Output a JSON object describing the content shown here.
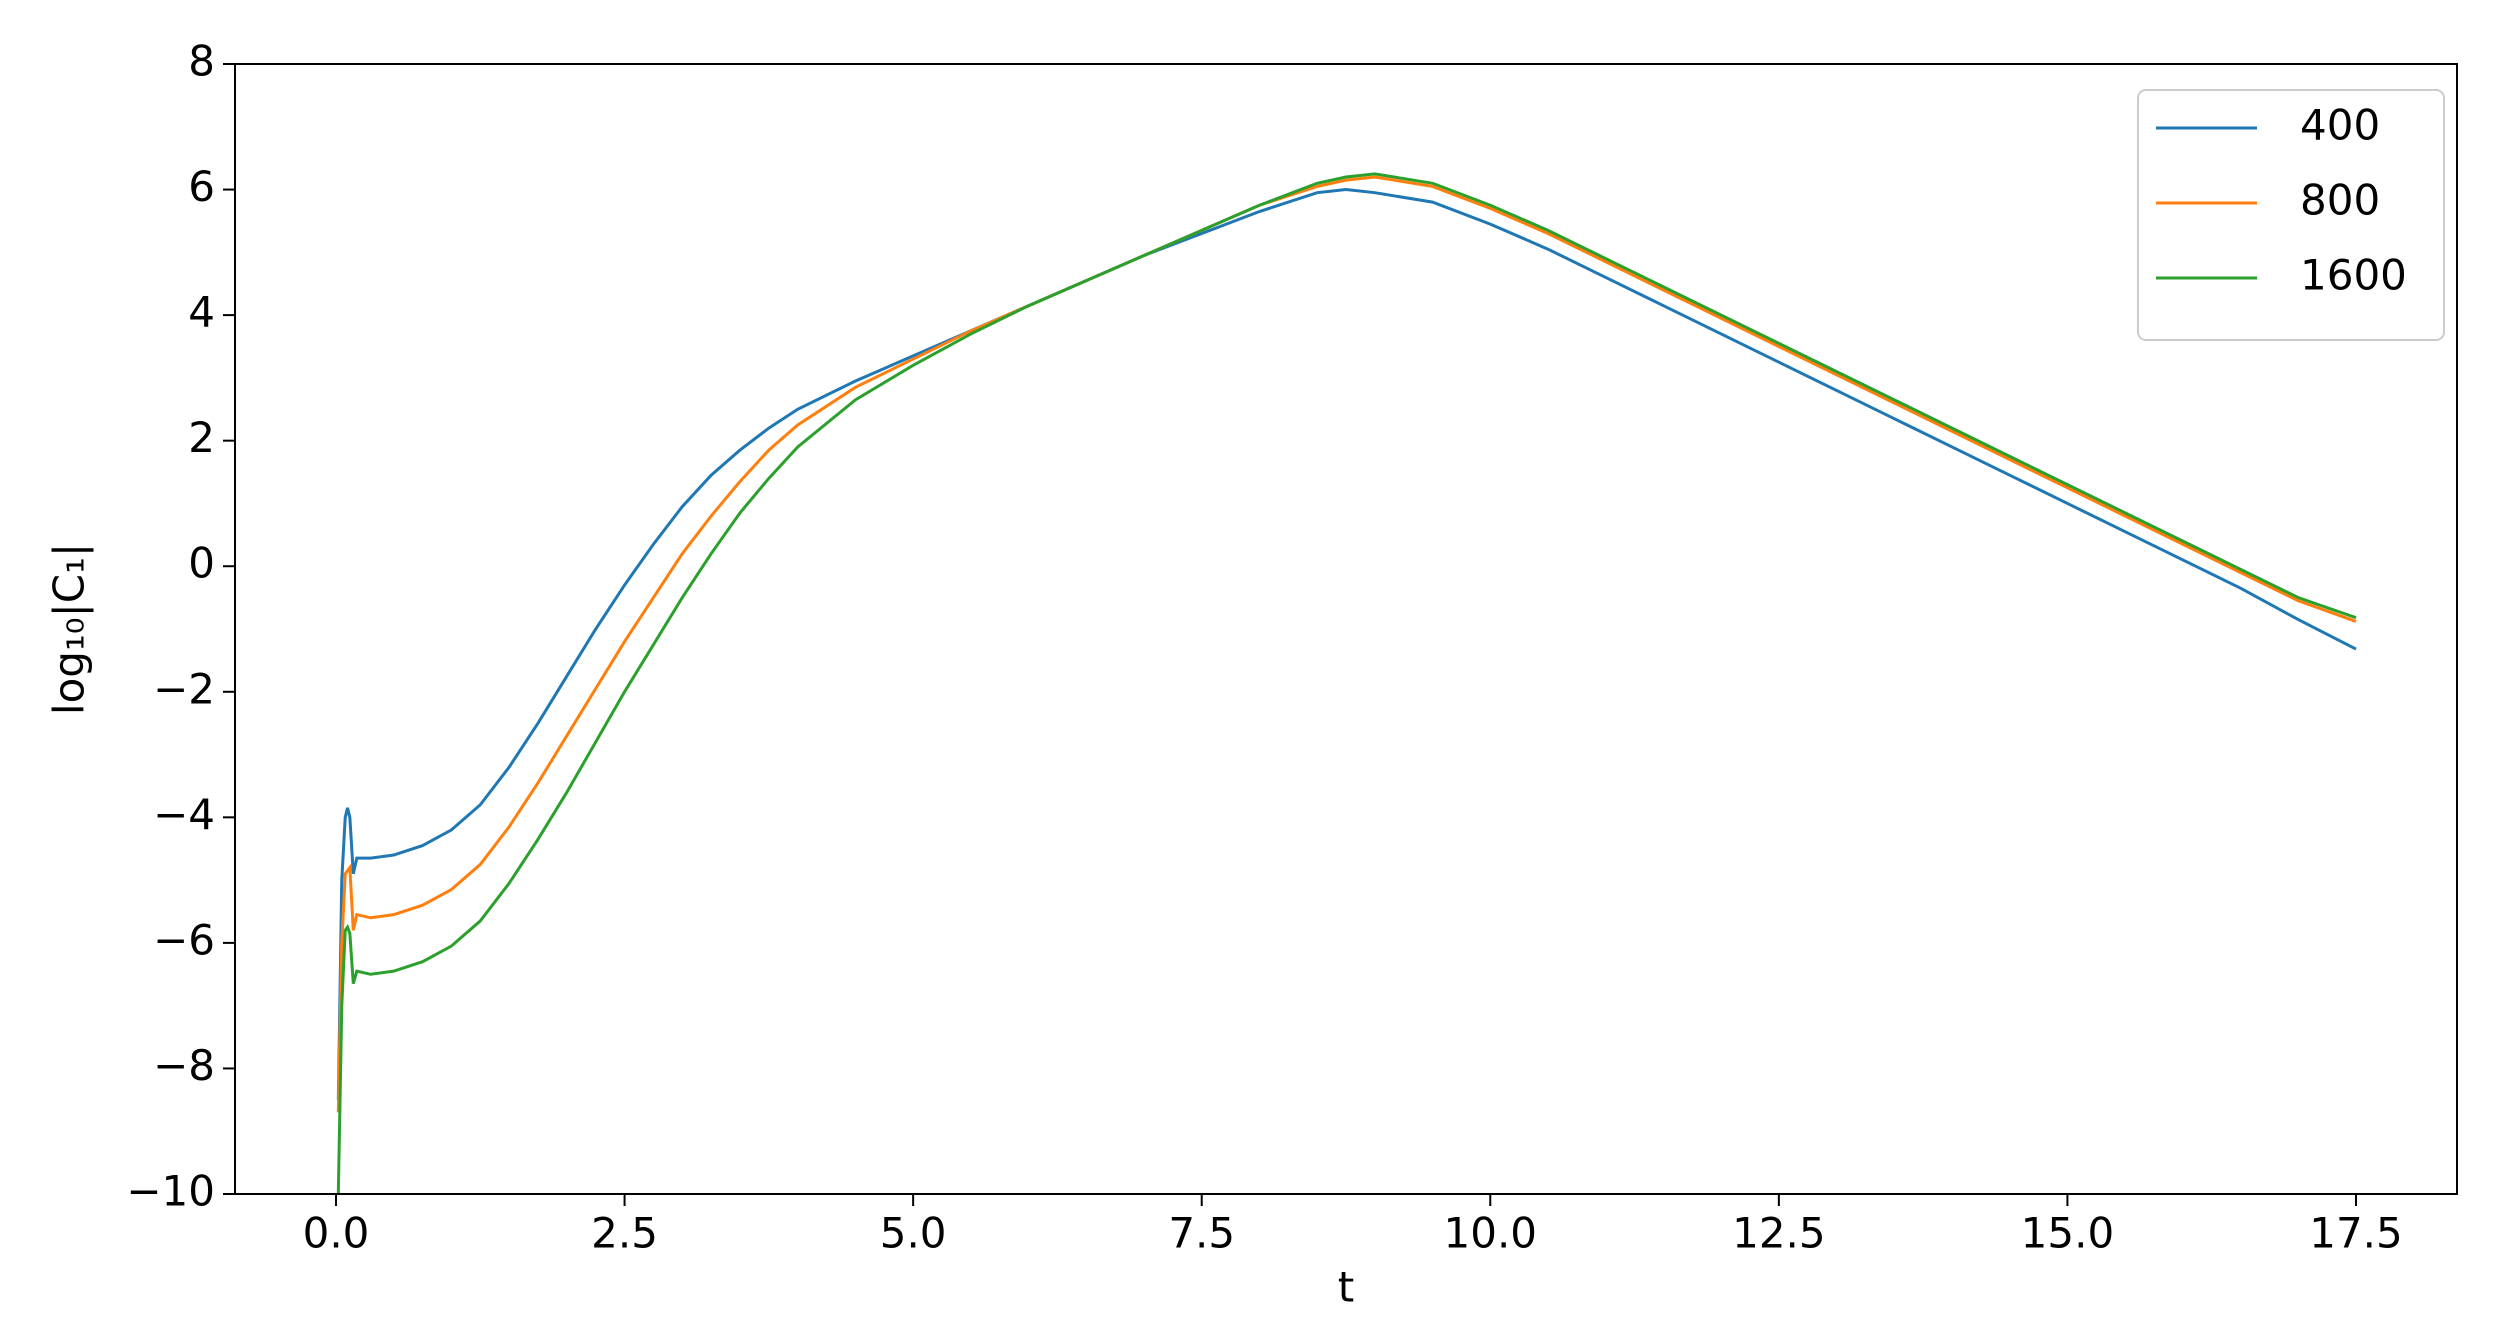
{
  "chart_data": {
    "type": "line",
    "x_label": "t",
    "y_label": "log₁₀|C₁|",
    "x": [
      0.02,
      0.05,
      0.08,
      0.1,
      0.12,
      0.15,
      0.18,
      0.3,
      0.5,
      0.75,
      1.0,
      1.25,
      1.5,
      1.75,
      2.0,
      2.25,
      2.5,
      2.75,
      3.0,
      3.25,
      3.5,
      3.75,
      4.0,
      4.5,
      5.0,
      5.5,
      6.0,
      6.5,
      7.0,
      7.5,
      8.0,
      8.5,
      8.75,
      9.0,
      9.5,
      10.0,
      10.5,
      11.0,
      11.5,
      12.0,
      12.5,
      13.0,
      13.5,
      14.0,
      14.5,
      15.0,
      15.5,
      16.0,
      16.5,
      17.0,
      17.5
    ],
    "series": [
      {
        "name": "400",
        "color": "#1f77b4",
        "values": [
          -8.5,
          -5,
          -4.0,
          -3.85,
          -4.0,
          -4.9,
          -4.65,
          -4.65,
          -4.6,
          -4.45,
          -4.2,
          -3.8,
          -3.2,
          -2.5,
          -1.75,
          -1.0,
          -0.3,
          0.35,
          0.95,
          1.45,
          1.85,
          2.2,
          2.5,
          2.95,
          3.35,
          3.75,
          4.15,
          4.55,
          4.95,
          5.3,
          5.65,
          5.95,
          6.0,
          5.95,
          5.8,
          5.45,
          5.05,
          4.6,
          4.15,
          3.7,
          3.25,
          2.8,
          2.35,
          1.9,
          1.45,
          1.0,
          0.55,
          0.1,
          -0.35,
          -0.85,
          -1.32
        ]
      },
      {
        "name": "800",
        "color": "#ff7f0e",
        "values": [
          -8.7,
          -6,
          -4.9,
          -4.85,
          -4.8,
          -5.8,
          -5.55,
          -5.6,
          -5.55,
          -5.4,
          -5.15,
          -4.75,
          -4.15,
          -3.45,
          -2.7,
          -1.95,
          -1.2,
          -0.5,
          0.2,
          0.8,
          1.35,
          1.85,
          2.25,
          2.85,
          3.3,
          3.75,
          4.15,
          4.55,
          4.95,
          5.35,
          5.75,
          6.05,
          6.15,
          6.2,
          6.05,
          5.7,
          5.3,
          4.85,
          4.4,
          3.95,
          3.5,
          3.05,
          2.6,
          2.15,
          1.7,
          1.25,
          0.8,
          0.35,
          -0.1,
          -0.55,
          -0.88
        ]
      },
      {
        "name": "1600",
        "color": "#2ca02c",
        "values": [
          -10,
          -7,
          -5.8,
          -5.75,
          -5.85,
          -6.65,
          -6.45,
          -6.5,
          -6.45,
          -6.3,
          -6.05,
          -5.65,
          -5.05,
          -4.35,
          -3.6,
          -2.8,
          -2.0,
          -1.25,
          -0.5,
          0.2,
          0.85,
          1.4,
          1.9,
          2.65,
          3.2,
          3.7,
          4.15,
          4.55,
          4.95,
          5.35,
          5.75,
          6.1,
          6.2,
          6.25,
          6.1,
          5.75,
          5.35,
          4.9,
          4.45,
          4.0,
          3.55,
          3.1,
          2.65,
          2.2,
          1.75,
          1.3,
          0.85,
          0.4,
          -0.05,
          -0.5,
          -0.82
        ]
      }
    ],
    "xlim": [
      -0.875,
      18.375
    ],
    "ylim": [
      -10,
      8
    ],
    "xticks": [
      {
        "value": 0,
        "label": "0.0"
      },
      2.5,
      {
        "value": 5,
        "label": "5.0"
      },
      7.5,
      {
        "value": 10,
        "label": "10.0"
      },
      12.5,
      {
        "value": 15,
        "label": "15.0"
      },
      17.5
    ],
    "yticks": [
      {
        "value": -10,
        "label": "−10"
      },
      {
        "value": -8,
        "label": "−8"
      },
      {
        "value": -6,
        "label": "−6"
      },
      {
        "value": -4,
        "label": "−4"
      },
      {
        "value": -2,
        "label": "−2"
      },
      0,
      2,
      4,
      6,
      8
    ],
    "legend": "upper right"
  }
}
